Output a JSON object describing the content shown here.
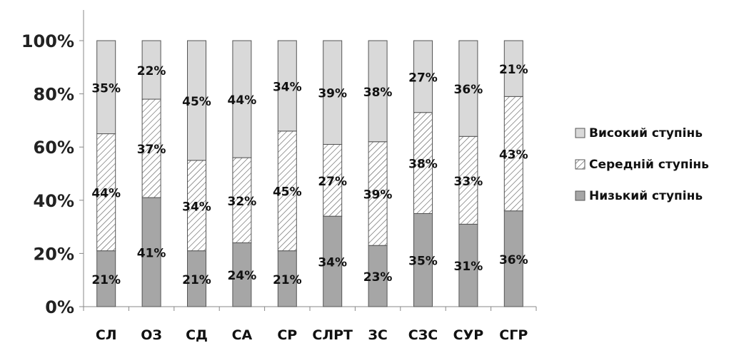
{
  "chart_data": {
    "type": "bar",
    "stacked": true,
    "percent_stacked": true,
    "categories": [
      "СЛ",
      "ОЗ",
      "СД",
      "СА",
      "СР",
      "СЛРТ",
      "ЗС",
      "СЗС",
      "СУР",
      "СГР"
    ],
    "series": [
      {
        "name": "Низький ступінь",
        "values": [
          21,
          41,
          21,
          24,
          21,
          34,
          23,
          35,
          31,
          36
        ],
        "color": "#a6a6a6",
        "pattern": "solid"
      },
      {
        "name": "Середній ступінь",
        "values": [
          44,
          37,
          34,
          32,
          45,
          27,
          39,
          38,
          33,
          43
        ],
        "color": "#ffffff",
        "pattern": "diagonal-hatch"
      },
      {
        "name": "Високий ступінь",
        "values": [
          35,
          22,
          45,
          44,
          34,
          39,
          38,
          27,
          36,
          21
        ],
        "color": "#d9d9d9",
        "pattern": "solid"
      }
    ],
    "data_labels": [
      [
        "21%",
        "41%",
        "21%",
        "24%",
        "21%",
        "34%",
        "23%",
        "35%",
        "31%",
        "36%"
      ],
      [
        "44%",
        "37%",
        "34%",
        "32%",
        "45%",
        "27%",
        "39%",
        "38%",
        "33%",
        "43%"
      ],
      [
        "35%",
        "22%",
        "45%",
        "44%",
        "34%",
        "39%",
        "38%",
        "27%",
        "36%",
        "21%"
      ]
    ],
    "ylim": [
      0,
      100
    ],
    "yticks": [
      "0%",
      "20%",
      "40%",
      "60%",
      "80%",
      "100%"
    ],
    "legend_order": [
      "Високий ступінь",
      "Середній ступінь",
      "Низький ступінь"
    ],
    "legend_position": "right",
    "grid": false
  }
}
